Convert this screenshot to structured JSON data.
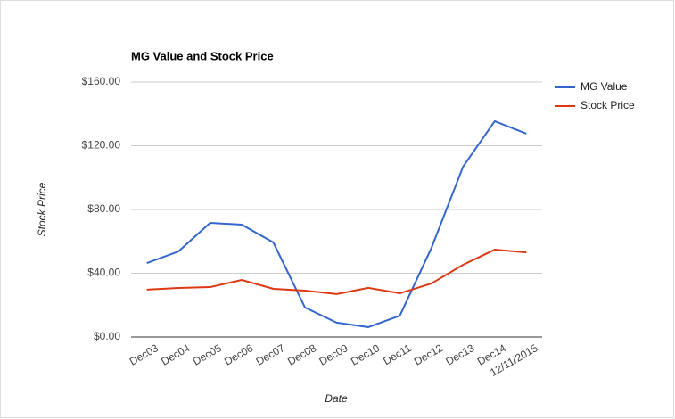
{
  "chart_data": {
    "type": "line",
    "title": "MG Value and Stock Price",
    "x_label": "Date",
    "y_label": "Stock Price",
    "categories": [
      "Dec03",
      "Dec04",
      "Dec05",
      "Dec06",
      "Dec07",
      "Dec08",
      "Dec09",
      "Dec10",
      "Dec11",
      "Dec12",
      "Dec13",
      "Dec14",
      "12/11/2015"
    ],
    "series": [
      {
        "name": "MG Value",
        "color": "#3366cc",
        "values": [
          46.4,
          53.7,
          71.6,
          70.5,
          59.3,
          18.5,
          9.0,
          6.2,
          13.4,
          55.9,
          106.9,
          135.4,
          127.6
        ]
      },
      {
        "name": "Stock Price",
        "color": "#dc3912",
        "values": [
          29.7,
          30.8,
          31.3,
          35.8,
          30.2,
          29.1,
          26.9,
          30.8,
          27.4,
          33.6,
          45.3,
          54.8,
          53.1
        ]
      }
    ],
    "ylim": [
      0,
      160
    ],
    "yticks": [
      {
        "value": 0,
        "label": "$0.00"
      },
      {
        "value": 40,
        "label": "$40.00"
      },
      {
        "value": 80,
        "label": "$80.00"
      },
      {
        "value": 120,
        "label": "$120.00"
      },
      {
        "value": 160,
        "label": "$160.00"
      }
    ],
    "grid": true,
    "legend": "right"
  }
}
